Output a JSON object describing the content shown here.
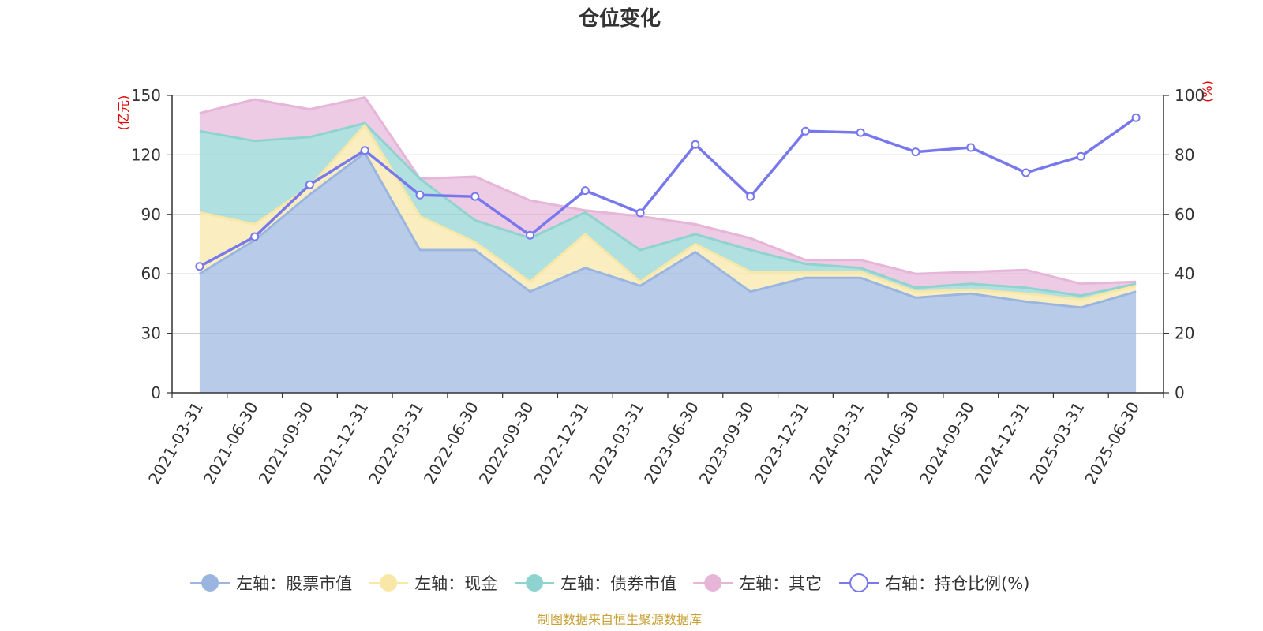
{
  "colors": {
    "stock": "#9ab6e0",
    "cash": "#f8e7a6",
    "bond": "#8fd3d1",
    "other": "#e6b5d8",
    "ratio": "#7878ee"
  },
  "chart_data": {
    "type": "area",
    "title": "仓位变化",
    "x": [
      "2021-03-31",
      "2021-06-30",
      "2021-09-30",
      "2021-12-31",
      "2022-03-31",
      "2022-06-30",
      "2022-09-30",
      "2022-12-31",
      "2023-03-31",
      "2023-06-30",
      "2023-09-30",
      "2023-12-31",
      "2024-03-31",
      "2024-06-30",
      "2024-09-30",
      "2024-12-31",
      "2025-03-31",
      "2025-06-30"
    ],
    "y_left": {
      "unit": "(亿元)",
      "ylim": [
        0,
        150
      ],
      "ticks": [
        "0",
        "30",
        "60",
        "90",
        "120",
        "150"
      ]
    },
    "y_right": {
      "unit": "(%)",
      "ylim": [
        0,
        100
      ],
      "ticks": [
        "0",
        "20",
        "40",
        "60",
        "80",
        "100"
      ]
    },
    "grid": true,
    "legend_position": "bottom",
    "stacked_series": [
      {
        "key": "stock",
        "name": "左轴：股票市值",
        "values": [
          60,
          77,
          100,
          121,
          72,
          72,
          51,
          63,
          54,
          71,
          51,
          58,
          58,
          48,
          50,
          46,
          43,
          51
        ]
      },
      {
        "key": "cash",
        "name": "左轴：现金",
        "values": [
          31,
          8,
          4,
          14,
          17,
          4,
          5,
          17,
          2,
          4,
          10,
          3,
          3,
          3,
          2,
          4,
          4,
          3
        ]
      },
      {
        "key": "bond",
        "name": "左轴：债券市值",
        "values": [
          41,
          42,
          25,
          1,
          19,
          11,
          22,
          11,
          16,
          5,
          11,
          4,
          2,
          2,
          3,
          3,
          2,
          1
        ]
      },
      {
        "key": "other",
        "name": "左轴：其它",
        "values": [
          9,
          21,
          14,
          13,
          0,
          22,
          19,
          1,
          17,
          5,
          6,
          2,
          4,
          7,
          6,
          9,
          6,
          1
        ]
      }
    ],
    "line_series": {
      "key": "ratio",
      "name": "右轴：持仓比例(%)",
      "axis": "right",
      "values": [
        42.5,
        52.5,
        70,
        81.5,
        66.5,
        66,
        53,
        68,
        60.5,
        83.5,
        66,
        88,
        87.5,
        81,
        82.5,
        74,
        79.5,
        92.5
      ]
    }
  },
  "source": "制图数据来自恒生聚源数据库"
}
